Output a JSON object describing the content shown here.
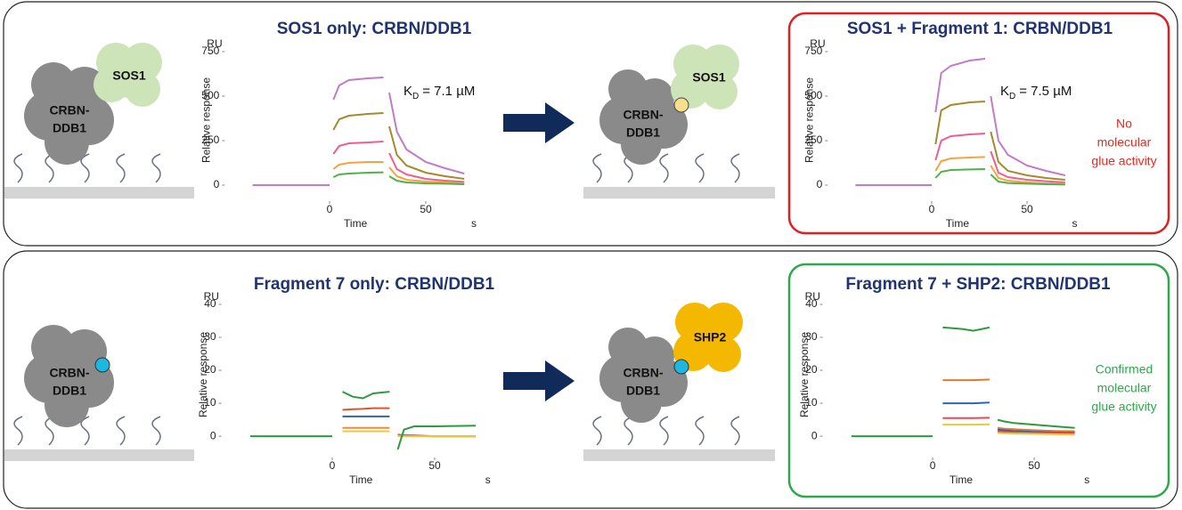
{
  "chart_data": [
    {
      "type": "line",
      "title": "SOS1 only: CRBN/DDB1",
      "y_unit": "RU",
      "ylabel": "Relative response",
      "xlabel": "Time",
      "x_unit": "s",
      "kd": {
        "symbol": "K",
        "subscript": "D",
        "value": "= 7.1 µM"
      },
      "xlim": [
        -48,
        75
      ],
      "xticks": [
        0,
        50
      ],
      "ylim": [
        -100,
        750
      ],
      "yticks": [
        0,
        250,
        500,
        750
      ],
      "x": [
        -40,
        -20,
        0,
        1,
        2,
        5,
        10,
        20,
        28,
        29.5,
        31,
        35,
        40,
        50,
        60,
        70
      ],
      "series": [
        {
          "color": "#c27bc8",
          "values": [
            0,
            0,
            0,
            null,
            480,
            560,
            590,
            600,
            605,
            null,
            520,
            300,
            200,
            130,
            95,
            65
          ]
        },
        {
          "color": "#a38a2c",
          "values": [
            null,
            null,
            null,
            null,
            310,
            370,
            390,
            400,
            405,
            null,
            330,
            170,
            110,
            70,
            50,
            35
          ]
        },
        {
          "color": "#ee5f8f",
          "values": [
            null,
            null,
            null,
            null,
            175,
            220,
            235,
            240,
            245,
            null,
            180,
            90,
            60,
            35,
            25,
            18
          ]
        },
        {
          "color": "#f5a342",
          "values": [
            null,
            null,
            null,
            null,
            90,
            115,
            125,
            130,
            130,
            null,
            100,
            50,
            30,
            20,
            15,
            10
          ]
        },
        {
          "color": "#52b04a",
          "values": [
            null,
            null,
            null,
            null,
            45,
            60,
            65,
            70,
            72,
            null,
            50,
            25,
            15,
            10,
            8,
            5
          ]
        }
      ]
    },
    {
      "type": "line",
      "title": "SOS1 + Fragment 1: CRBN/DDB1",
      "y_unit": "RU",
      "ylabel": "Relative response",
      "xlabel": "Time",
      "x_unit": "s",
      "kd": {
        "symbol": "K",
        "subscript": "D",
        "value": "= 7.5 µM"
      },
      "note": [
        "No",
        "molecular",
        "glue activity"
      ],
      "note_color": "#e8281e",
      "frame_color": "#e02020",
      "xlim": [
        -48,
        75
      ],
      "xticks": [
        0,
        50
      ],
      "ylim": [
        -100,
        750
      ],
      "yticks": [
        0,
        250,
        500,
        750
      ],
      "x": [
        -40,
        -20,
        0,
        1,
        2,
        5,
        10,
        20,
        28,
        29.5,
        31,
        35,
        40,
        50,
        60,
        70
      ],
      "series": [
        {
          "color": "#c27bc8",
          "values": [
            0,
            0,
            0,
            null,
            410,
            630,
            670,
            700,
            710,
            null,
            500,
            250,
            170,
            110,
            80,
            55
          ]
        },
        {
          "color": "#a38a2c",
          "values": [
            null,
            null,
            null,
            null,
            230,
            420,
            450,
            465,
            470,
            null,
            300,
            130,
            80,
            55,
            40,
            30
          ]
        },
        {
          "color": "#ee5f8f",
          "values": [
            null,
            null,
            null,
            null,
            140,
            250,
            275,
            285,
            290,
            null,
            190,
            70,
            45,
            30,
            22,
            15
          ]
        },
        {
          "color": "#f5a342",
          "values": [
            null,
            null,
            null,
            null,
            80,
            135,
            150,
            155,
            158,
            null,
            110,
            40,
            25,
            15,
            10,
            8
          ]
        },
        {
          "color": "#52b04a",
          "values": [
            null,
            null,
            null,
            null,
            40,
            75,
            85,
            88,
            90,
            null,
            60,
            20,
            12,
            8,
            5,
            3
          ]
        }
      ]
    },
    {
      "type": "line",
      "title": "Fragment 7 only: CRBN/DDB1",
      "y_unit": "RU",
      "ylabel": "Relative response",
      "xlabel": "Time",
      "x_unit": "s",
      "xlim": [
        -48,
        76
      ],
      "xticks": [
        0,
        50
      ],
      "ylim": [
        -7,
        40
      ],
      "yticks": [
        0,
        10,
        20,
        30,
        40
      ],
      "x": [
        -40,
        -20,
        0,
        1,
        5,
        10,
        15,
        20,
        28,
        30,
        32,
        35,
        40,
        50,
        60,
        70
      ],
      "series": [
        {
          "color": "#d9572b",
          "values": [
            null,
            null,
            null,
            null,
            8,
            8.2,
            8.3,
            8.5,
            8.5,
            null,
            0.5,
            0.3,
            0.2,
            0,
            0,
            0
          ]
        },
        {
          "color": "#2e64b5",
          "values": [
            null,
            null,
            null,
            null,
            6,
            6,
            6,
            6,
            6,
            null,
            0.3,
            0.2,
            0.1,
            0,
            0,
            0
          ]
        },
        {
          "color": "#f08a3a",
          "values": [
            null,
            null,
            null,
            null,
            2.5,
            2.5,
            2.5,
            2.5,
            2.5,
            null,
            0.2,
            0.1,
            0,
            0,
            0,
            0
          ]
        },
        {
          "color": "#e8c93a",
          "values": [
            null,
            null,
            null,
            null,
            1.5,
            1.5,
            1.5,
            1.5,
            1.5,
            null,
            0,
            0,
            0,
            0,
            0,
            0
          ]
        },
        {
          "color": "#2e9a3e",
          "values": [
            0,
            0,
            0,
            null,
            13.5,
            12,
            11.5,
            13,
            13.5,
            null,
            -4,
            2,
            3,
            3,
            3.1,
            3.2
          ]
        }
      ]
    },
    {
      "type": "line",
      "title": "Fragment 7 + SHP2: CRBN/DDB1",
      "y_unit": "RU",
      "ylabel": "Relative response",
      "xlabel": "Time",
      "x_unit": "s",
      "note": [
        "Confirmed",
        "molecular",
        "glue activity"
      ],
      "note_color": "#2ea84a",
      "frame_color": "#2ea84a",
      "xlim": [
        -48,
        76
      ],
      "xticks": [
        0,
        50
      ],
      "ylim": [
        -7,
        40
      ],
      "yticks": [
        0,
        10,
        20,
        30,
        40
      ],
      "x": [
        -40,
        -20,
        0,
        1,
        5,
        10,
        15,
        20,
        28,
        30,
        32,
        35,
        40,
        50,
        60,
        70
      ],
      "series": [
        {
          "color": "#e07a2a",
          "values": [
            null,
            null,
            null,
            null,
            17,
            17,
            17,
            17,
            17.2,
            null,
            2.5,
            2.3,
            2.1,
            1.8,
            1.6,
            1.5
          ]
        },
        {
          "color": "#2e64b5",
          "values": [
            null,
            null,
            null,
            null,
            10,
            10,
            10,
            10,
            10.2,
            null,
            2,
            1.8,
            1.6,
            1.3,
            1.1,
            1
          ]
        },
        {
          "color": "#e04a5a",
          "values": [
            null,
            null,
            null,
            null,
            5.5,
            5.5,
            5.5,
            5.5,
            5.6,
            null,
            1.5,
            1.3,
            1.2,
            1,
            0.9,
            0.8
          ]
        },
        {
          "color": "#e8c93a",
          "values": [
            null,
            null,
            null,
            null,
            3.5,
            3.5,
            3.5,
            3.5,
            3.6,
            null,
            1,
            0.9,
            0.8,
            0.7,
            0.6,
            0.5
          ]
        },
        {
          "color": "#2e9a3e",
          "values": [
            0,
            0,
            0,
            null,
            33,
            32.8,
            32.5,
            32,
            33,
            null,
            5,
            4.5,
            4,
            3.5,
            3,
            2.5
          ]
        }
      ]
    }
  ],
  "diagrams": [
    {
      "complex": [
        "CRBN-",
        "DDB1"
      ],
      "partner": "SOS1"
    },
    {
      "complex": [
        "CRBN-",
        "DDB1"
      ],
      "partner": "SOS1"
    },
    {
      "complex": [
        "CRBN-",
        "DDB1"
      ]
    },
    {
      "complex": [
        "CRBN-",
        "DDB1"
      ],
      "partner": "SHP2"
    }
  ]
}
